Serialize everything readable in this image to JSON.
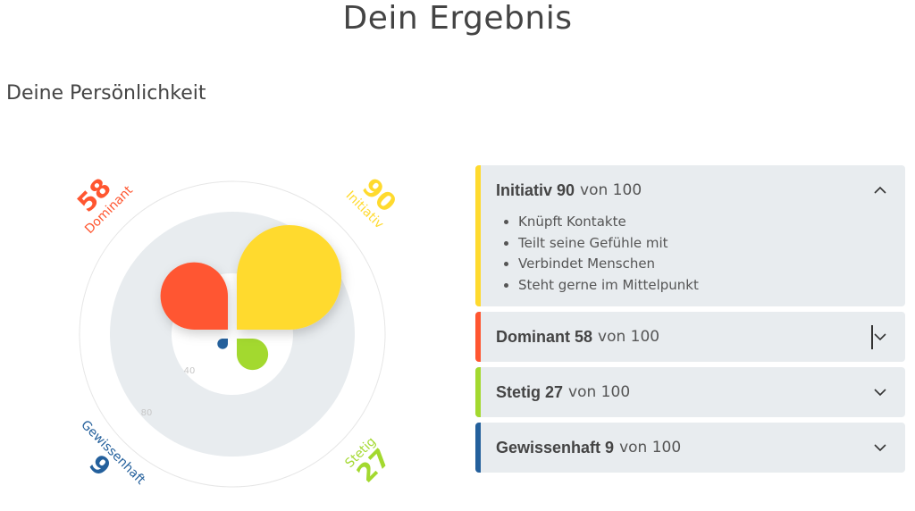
{
  "page": {
    "title": "Dein Ergebnis",
    "section_title": "Deine Persönlichkeit"
  },
  "colors": {
    "dominant": "#ff5630",
    "initiativ": "#ffda2e",
    "stetig": "#a3d92f",
    "gewissenhaft": "#24609c",
    "ring": "#e8ecef"
  },
  "chart_data": {
    "type": "polar-area",
    "scale_labels": [
      "40",
      "80"
    ],
    "rmax": 100,
    "segments": [
      {
        "name": "Dominant",
        "value": 58,
        "quadrant": "top-left",
        "color": "#ff5630"
      },
      {
        "name": "Initiativ",
        "value": 90,
        "quadrant": "top-right",
        "color": "#ffda2e"
      },
      {
        "name": "Stetig",
        "value": 27,
        "quadrant": "bottom-right",
        "color": "#a3d92f"
      },
      {
        "name": "Gewissenhaft",
        "value": 9,
        "quadrant": "bottom-left",
        "color": "#24609c"
      }
    ]
  },
  "accordion": {
    "of_label": "von 100",
    "items": [
      {
        "name": "Initiativ",
        "score": "90",
        "color": "#ffda2e",
        "expanded": true,
        "icon": "chevron-up-icon",
        "bullets": [
          "Knüpft Kontakte",
          "Teilt seine Gefühle mit",
          "Verbindet Menschen",
          "Steht gerne im Mittelpunkt"
        ]
      },
      {
        "name": "Dominant",
        "score": "58",
        "color": "#ff5630",
        "expanded": false,
        "icon": "chevron-down-icon"
      },
      {
        "name": "Stetig",
        "score": "27",
        "color": "#a3d92f",
        "expanded": false,
        "icon": "chevron-down-icon"
      },
      {
        "name": "Gewissenhaft",
        "score": "9",
        "color": "#24609c",
        "expanded": false,
        "icon": "chevron-down-icon"
      }
    ]
  }
}
